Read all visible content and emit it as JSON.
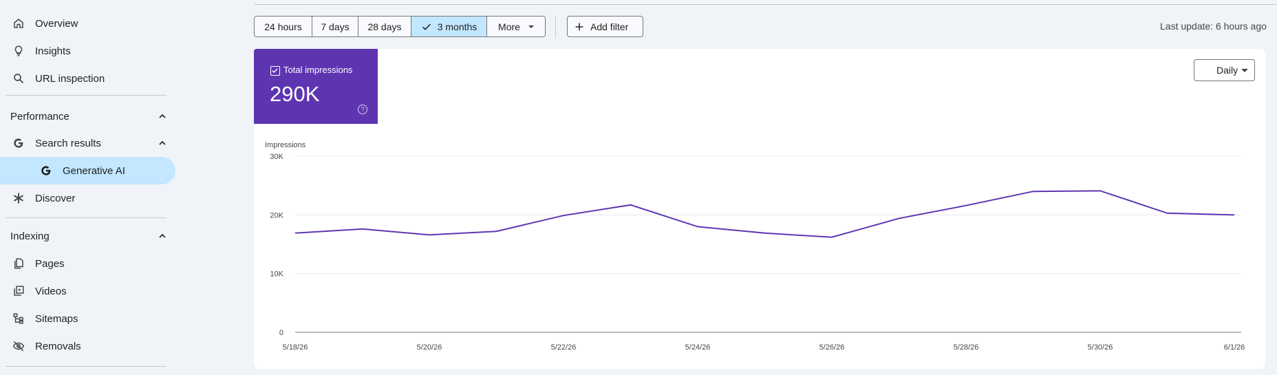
{
  "sidebar": {
    "top_items": [
      {
        "label": "Overview",
        "icon": "home-icon"
      },
      {
        "label": "Insights",
        "icon": "lightbulb-icon"
      },
      {
        "label": "URL inspection",
        "icon": "search-icon"
      }
    ],
    "performance": {
      "label": "Performance",
      "search_results": "Search results",
      "generative_ai": "Generative AI",
      "discover": "Discover"
    },
    "indexing": {
      "label": "Indexing",
      "items": [
        {
          "label": "Pages",
          "icon": "pages-icon"
        },
        {
          "label": "Videos",
          "icon": "videos-icon"
        },
        {
          "label": "Sitemaps",
          "icon": "sitemaps-icon"
        },
        {
          "label": "Removals",
          "icon": "removals-icon"
        }
      ]
    }
  },
  "toolbar": {
    "ranges": [
      "24 hours",
      "7 days",
      "28 days",
      "3 months",
      "More"
    ],
    "selected_range": "3 months",
    "add_filter": "Add filter",
    "last_update": "Last update: 6 hours ago"
  },
  "metric": {
    "label": "Total impressions",
    "value": "290K",
    "color": "#5e35b1"
  },
  "granularity": "Daily",
  "chart_data": {
    "type": "line",
    "ylabel": "Impressions",
    "y_ticks": [
      "0",
      "10K",
      "20K",
      "30K"
    ],
    "ylim": [
      0,
      30000
    ],
    "x_tick_labels": [
      "5/18/26",
      "5/20/26",
      "5/22/26",
      "5/24/26",
      "5/26/26",
      "5/28/26",
      "5/30/26",
      "6/1/26"
    ],
    "x": [
      "5/18/26",
      "5/19/26",
      "5/20/26",
      "5/21/26",
      "5/22/26",
      "5/23/26",
      "5/24/26",
      "5/25/26",
      "5/26/26",
      "5/27/26",
      "5/28/26",
      "5/29/26",
      "5/30/26",
      "5/31/26",
      "6/1/26"
    ],
    "series": [
      {
        "color": "#5e35b1",
        "values": [
          16900,
          17600,
          16600,
          17200,
          19900,
          21700,
          18000,
          16900,
          16200,
          19400,
          21600,
          24000,
          24100,
          20300,
          20000
        ]
      }
    ]
  }
}
